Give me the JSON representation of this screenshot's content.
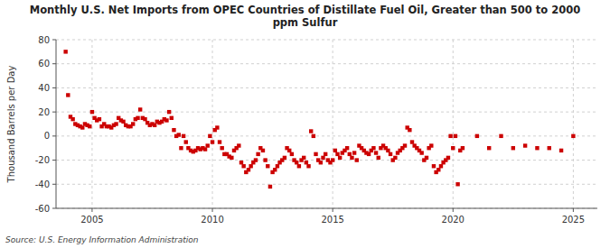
{
  "chart_data": {
    "type": "scatter",
    "title": "Monthly U.S. Net Imports from OPEC Countries of Distillate Fuel Oil, Greater than 500 to 2000\nppm Sulfur",
    "ylabel": "Thousand Barrels per Day",
    "annotations": [
      "Source: U.S. Energy Information Administration"
    ],
    "color": "#cc0000",
    "marker": "square",
    "grid": true,
    "xlim": [
      2003.5,
      2026.0
    ],
    "ylim": [
      -60,
      80
    ],
    "xticks": [
      2005,
      2010,
      2015,
      2020,
      2025
    ],
    "yticks": [
      -60,
      -40,
      -20,
      0,
      20,
      40,
      60,
      80
    ],
    "x": [
      2003.9,
      2004.0,
      2004.1,
      2004.2,
      2004.3,
      2004.4,
      2004.5,
      2004.6,
      2004.7,
      2004.8,
      2004.9,
      2005.0,
      2005.1,
      2005.2,
      2005.3,
      2005.4,
      2005.5,
      2005.6,
      2005.7,
      2005.8,
      2005.9,
      2006.0,
      2006.1,
      2006.2,
      2006.3,
      2006.4,
      2006.5,
      2006.6,
      2006.7,
      2006.8,
      2006.9,
      2007.0,
      2007.1,
      2007.2,
      2007.3,
      2007.4,
      2007.5,
      2007.6,
      2007.7,
      2007.8,
      2007.9,
      2008.0,
      2008.1,
      2008.2,
      2008.3,
      2008.4,
      2008.5,
      2008.6,
      2008.7,
      2008.8,
      2008.9,
      2009.0,
      2009.1,
      2009.2,
      2009.3,
      2009.4,
      2009.5,
      2009.6,
      2009.7,
      2009.8,
      2009.9,
      2010.0,
      2010.1,
      2010.2,
      2010.3,
      2010.4,
      2010.5,
      2010.6,
      2010.7,
      2010.8,
      2010.9,
      2011.0,
      2011.1,
      2011.2,
      2011.3,
      2011.4,
      2011.5,
      2011.6,
      2011.7,
      2011.8,
      2011.9,
      2012.0,
      2012.1,
      2012.2,
      2012.3,
      2012.4,
      2012.5,
      2012.6,
      2012.7,
      2012.8,
      2012.9,
      2013.0,
      2013.1,
      2013.2,
      2013.3,
      2013.4,
      2013.5,
      2013.6,
      2013.7,
      2013.8,
      2013.9,
      2014.0,
      2014.1,
      2014.2,
      2014.3,
      2014.4,
      2014.5,
      2014.6,
      2014.7,
      2014.8,
      2014.9,
      2015.0,
      2015.1,
      2015.2,
      2015.3,
      2015.4,
      2015.5,
      2015.6,
      2015.7,
      2015.8,
      2015.9,
      2016.0,
      2016.1,
      2016.2,
      2016.3,
      2016.4,
      2016.5,
      2016.6,
      2016.7,
      2016.8,
      2016.9,
      2017.0,
      2017.1,
      2017.2,
      2017.3,
      2017.4,
      2017.5,
      2017.6,
      2017.7,
      2017.8,
      2017.9,
      2018.0,
      2018.1,
      2018.2,
      2018.3,
      2018.4,
      2018.5,
      2018.6,
      2018.7,
      2018.8,
      2018.9,
      2019.0,
      2019.1,
      2019.2,
      2019.3,
      2019.4,
      2019.5,
      2019.6,
      2019.7,
      2019.8,
      2019.9,
      2020.0,
      2020.1,
      2020.2,
      2020.3,
      2020.4,
      2021.0,
      2021.5,
      2022.0,
      2022.5,
      2023.0,
      2023.5,
      2024.0,
      2024.5,
      2025.0
    ],
    "values": [
      70,
      34,
      16,
      14,
      10,
      9,
      8,
      7,
      10,
      9,
      8,
      20,
      15,
      13,
      14,
      8,
      10,
      8,
      8,
      7,
      9,
      10,
      15,
      13,
      12,
      9,
      8,
      8,
      10,
      14,
      15,
      22,
      15,
      14,
      11,
      9,
      10,
      9,
      12,
      11,
      12,
      14,
      13,
      20,
      15,
      5,
      0,
      1,
      -10,
      0,
      -5,
      -10,
      -12,
      -13,
      -12,
      -10,
      -11,
      -10,
      -11,
      -8,
      0,
      -5,
      5,
      7,
      -5,
      -10,
      -15,
      -15,
      -17,
      -18,
      -12,
      -10,
      -8,
      -22,
      -25,
      -30,
      -28,
      -25,
      -22,
      -20,
      -15,
      -10,
      -12,
      -20,
      -25,
      -42,
      -30,
      -28,
      -25,
      -22,
      -20,
      -18,
      -10,
      -12,
      -15,
      -20,
      -22,
      -25,
      -20,
      -18,
      -22,
      -25,
      4,
      0,
      -15,
      -20,
      -22,
      -18,
      -15,
      -20,
      -22,
      -20,
      -12,
      -15,
      -18,
      -14,
      -12,
      -10,
      -15,
      -18,
      -14,
      -20,
      -8,
      -10,
      -12,
      -14,
      -15,
      -12,
      -10,
      -14,
      -18,
      -10,
      -8,
      -10,
      -12,
      -15,
      -20,
      -18,
      -14,
      -12,
      -10,
      -8,
      7,
      5,
      -5,
      -8,
      -10,
      -12,
      -14,
      -20,
      -18,
      -10,
      -8,
      -25,
      -30,
      -28,
      -25,
      -22,
      -20,
      -18,
      0,
      -10,
      0,
      -40,
      -12,
      -10,
      0,
      -10,
      0,
      -10,
      -8,
      -10,
      -10,
      -12,
      0
    ]
  }
}
